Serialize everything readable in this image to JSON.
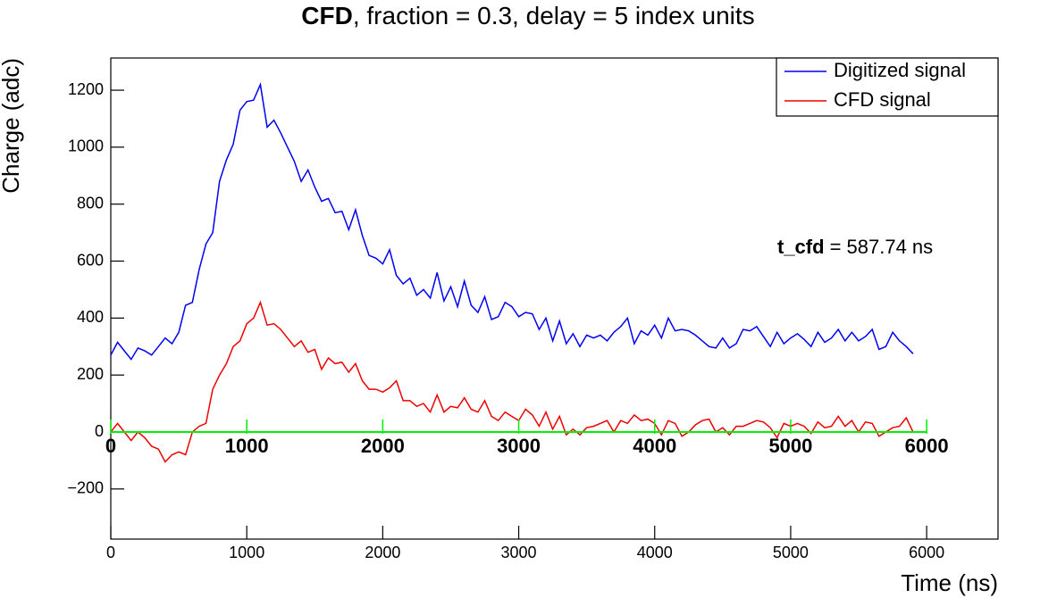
{
  "chart_data": {
    "type": "line",
    "title_bold": "CFD",
    "title_rest": ",  fraction = 0.3, delay = 5 index units",
    "xlabel": "Time (ns)",
    "ylabel": "Charge (adc)",
    "xlim": [
      0,
      6525
    ],
    "ylim": [
      -376,
      1313
    ],
    "xticks": [
      0,
      1000,
      2000,
      3000,
      4000,
      5000,
      6000
    ],
    "yticks": [
      {
        "value": -200,
        "label": "−200"
      },
      0,
      200,
      400,
      600,
      800,
      1000,
      1200
    ],
    "legend": "top-right",
    "x": [
      0,
      50,
      100,
      150,
      200,
      250,
      300,
      350,
      400,
      450,
      500,
      550,
      600,
      650,
      700,
      750,
      800,
      850,
      900,
      950,
      1000,
      1050,
      1100,
      1150,
      1200,
      1250,
      1300,
      1350,
      1400,
      1450,
      1500,
      1550,
      1600,
      1650,
      1700,
      1750,
      1800,
      1850,
      1900,
      1950,
      2000,
      2050,
      2100,
      2150,
      2200,
      2250,
      2300,
      2350,
      2400,
      2450,
      2500,
      2550,
      2600,
      2650,
      2700,
      2750,
      2800,
      2850,
      2900,
      2950,
      3000,
      3050,
      3100,
      3150,
      3200,
      3250,
      3300,
      3350,
      3400,
      3450,
      3500,
      3550,
      3600,
      3650,
      3700,
      3750,
      3800,
      3850,
      3900,
      3950,
      4000,
      4050,
      4100,
      4150,
      4200,
      4250,
      4300,
      4350,
      4400,
      4450,
      4500,
      4550,
      4600,
      4650,
      4700,
      4750,
      4800,
      4850,
      4900,
      4950,
      5000,
      5050,
      5100,
      5150,
      5200,
      5250,
      5300,
      5350,
      5400,
      5450,
      5500,
      5550,
      5600,
      5650,
      5700,
      5750,
      5800,
      5850,
      5900
    ],
    "series": [
      {
        "name": "Digitized signal",
        "color": "#0000ee",
        "values": [
          270,
          315,
          285,
          255,
          295,
          285,
          270,
          300,
          330,
          310,
          350,
          445,
          455,
          570,
          660,
          700,
          880,
          955,
          1010,
          1130,
          1160,
          1165,
          1220,
          1070,
          1095,
          1050,
          1000,
          950,
          880,
          920,
          860,
          810,
          820,
          770,
          775,
          710,
          780,
          690,
          620,
          610,
          590,
          640,
          550,
          520,
          540,
          480,
          500,
          470,
          560,
          460,
          510,
          440,
          530,
          445,
          420,
          475,
          395,
          405,
          455,
          440,
          405,
          420,
          415,
          360,
          400,
          320,
          390,
          310,
          345,
          300,
          340,
          330,
          340,
          320,
          350,
          370,
          400,
          310,
          355,
          340,
          375,
          330,
          400,
          355,
          360,
          355,
          340,
          320,
          300,
          295,
          330,
          295,
          310,
          360,
          355,
          370,
          335,
          300,
          350,
          310,
          330,
          345,
          325,
          300,
          350,
          315,
          330,
          360,
          320,
          350,
          320,
          335,
          360,
          290,
          300,
          350,
          320,
          300,
          275
        ]
      },
      {
        "name": "CFD signal",
        "color": "#ee0000",
        "values": [
          0,
          30,
          0,
          -30,
          0,
          -20,
          -50,
          -60,
          -105,
          -80,
          -70,
          -80,
          0,
          20,
          30,
          150,
          200,
          240,
          300,
          320,
          380,
          400,
          455,
          375,
          380,
          360,
          330,
          300,
          320,
          280,
          290,
          220,
          260,
          240,
          245,
          210,
          240,
          180,
          150,
          150,
          140,
          155,
          180,
          110,
          110,
          90,
          100,
          70,
          130,
          70,
          90,
          85,
          120,
          80,
          70,
          110,
          55,
          40,
          70,
          55,
          40,
          80,
          60,
          20,
          70,
          10,
          55,
          -10,
          10,
          -10,
          15,
          20,
          30,
          40,
          0,
          40,
          30,
          60,
          40,
          45,
          30,
          -10,
          40,
          30,
          -15,
          0,
          25,
          40,
          45,
          0,
          15,
          -10,
          20,
          20,
          30,
          40,
          35,
          15,
          -20,
          30,
          20,
          30,
          20,
          -5,
          35,
          15,
          20,
          55,
          20,
          40,
          0,
          35,
          30,
          -15,
          0,
          15,
          20,
          50,
          0
        ]
      }
    ],
    "cfd_axis": {
      "color": "#00ee00",
      "ticks": [
        0,
        1000,
        2000,
        3000,
        4000,
        5000,
        6000
      ]
    },
    "annotation": {
      "name": "t_cfd",
      "text": "=  587.74 ns"
    }
  }
}
